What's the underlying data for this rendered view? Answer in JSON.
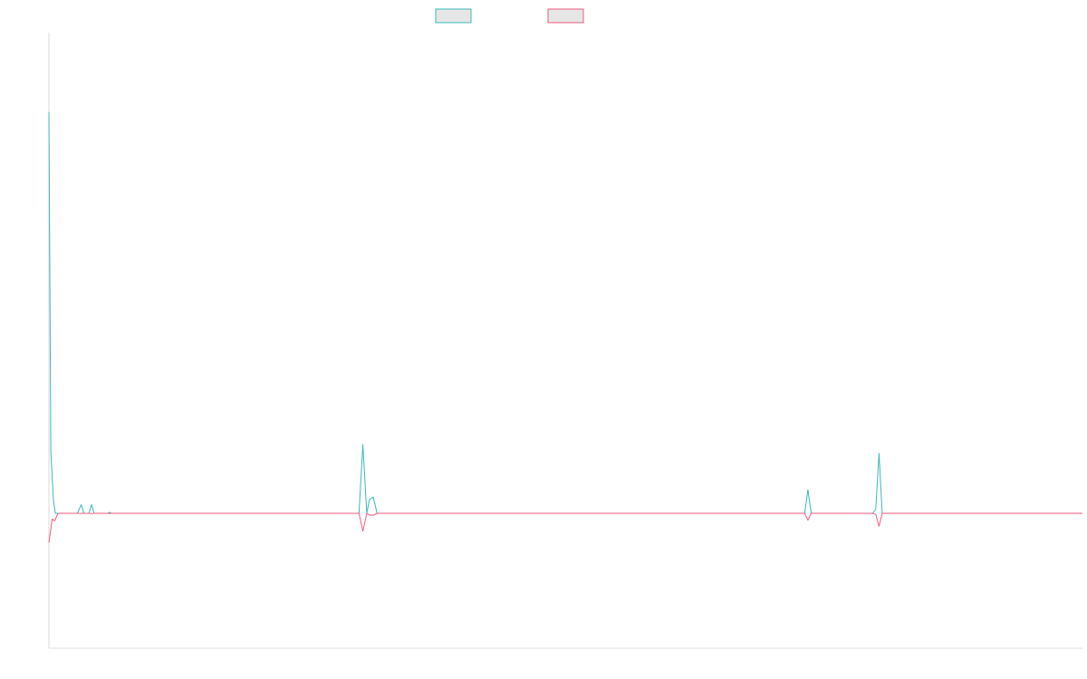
{
  "chart_data": {
    "type": "line",
    "title": "",
    "xlabel": "",
    "ylabel": "",
    "ylim": [
      -1,
      1
    ],
    "grid": false,
    "legend_placement": "top-center",
    "series": [
      {
        "color": "#3ab8b8",
        "legend_fill": "#e6e6e6",
        "points": [
          [
            0,
            0.782
          ],
          [
            0.3,
            0.12
          ],
          [
            0.7,
            0.025
          ],
          [
            1.0,
            0.0
          ],
          [
            4.4,
            0.0
          ],
          [
            5.0,
            0.017
          ],
          [
            5.4,
            0.0
          ],
          [
            6.2,
            0.0
          ],
          [
            6.6,
            0.017
          ],
          [
            7.0,
            0.0
          ],
          [
            9.1,
            0.0
          ],
          [
            9.4,
            0.002
          ],
          [
            9.7,
            0.0
          ],
          [
            48.0,
            0.0
          ],
          [
            48.6,
            0.134
          ],
          [
            49.2,
            0.0
          ],
          [
            49.6,
            0.026
          ],
          [
            50.2,
            0.032
          ],
          [
            50.8,
            0.0
          ],
          [
            117.0,
            0.0
          ],
          [
            117.5,
            0.046
          ],
          [
            118.0,
            0.0
          ],
          [
            127.5,
            0.0
          ],
          [
            128.0,
            0.008
          ],
          [
            128.5,
            0.117
          ],
          [
            129.0,
            0.0
          ],
          [
            160.0,
            0.0
          ]
        ]
      },
      {
        "color": "#ee5b7f",
        "legend_fill": "#e6e6e6",
        "points": [
          [
            0,
            -0.219
          ],
          [
            0.5,
            -0.043
          ],
          [
            0.9,
            -0.055
          ],
          [
            1.4,
            0.0
          ],
          [
            4.4,
            0.0
          ],
          [
            5.0,
            -0.001
          ],
          [
            5.4,
            0.0
          ],
          [
            6.2,
            0.0
          ],
          [
            6.6,
            -0.002
          ],
          [
            7.0,
            0.0
          ],
          [
            9.1,
            0.0
          ],
          [
            9.4,
            -0.001
          ],
          [
            9.7,
            0.0
          ],
          [
            48.0,
            0.0
          ],
          [
            48.6,
            -0.132
          ],
          [
            49.2,
            0.0
          ],
          [
            49.6,
            -0.012
          ],
          [
            50.2,
            -0.015
          ],
          [
            50.8,
            0.0
          ],
          [
            117.0,
            0.0
          ],
          [
            117.5,
            -0.05
          ],
          [
            118.0,
            0.0
          ],
          [
            127.5,
            0.0
          ],
          [
            128.0,
            -0.008
          ],
          [
            128.5,
            -0.095
          ],
          [
            129.0,
            0.0
          ],
          [
            160.0,
            0.0
          ]
        ]
      }
    ]
  }
}
